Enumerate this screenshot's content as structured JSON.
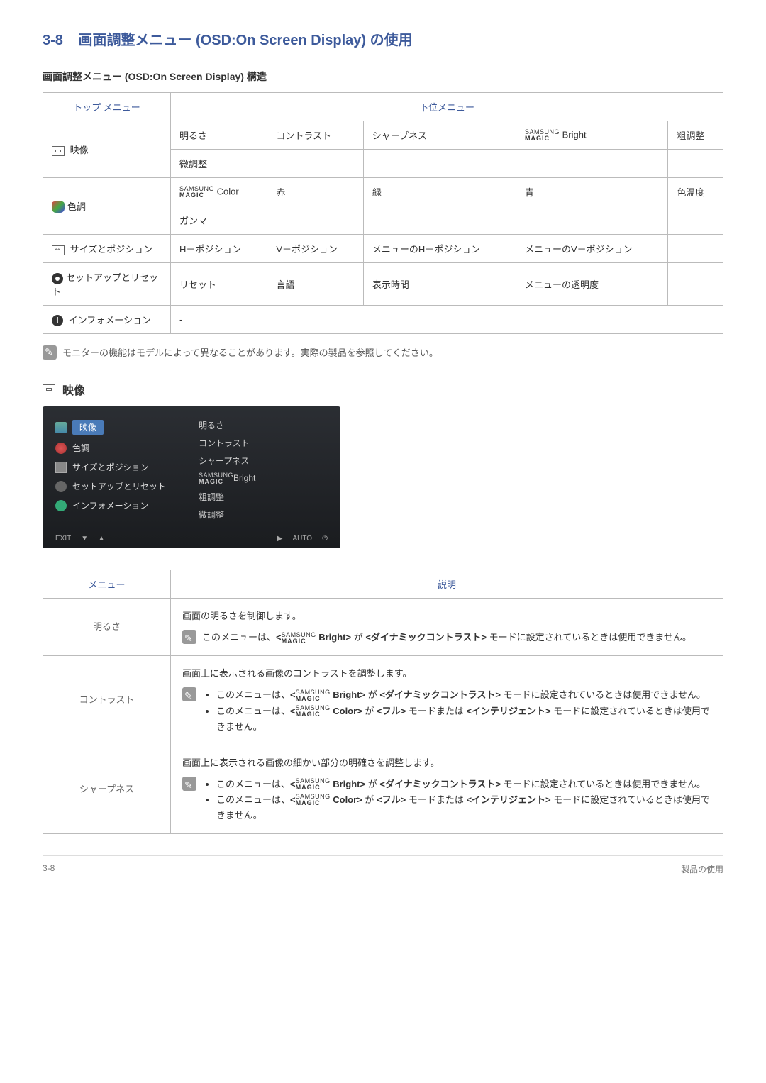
{
  "header": {
    "section_number": "3-8",
    "title": "画面調整メニュー (OSD:On Screen Display) の使用"
  },
  "structure_title": "画面調整メニュー (OSD:On Screen Display) 構造",
  "table1": {
    "head": {
      "top": "トップ メニュー",
      "sub": "下位メニュー"
    },
    "rows": {
      "picture": {
        "label": "映像",
        "c1": "明るさ",
        "c2": "コントラスト",
        "c3": "シャープネス",
        "c4_suffix": " Bright",
        "c5": "粗調整",
        "r2c1": "微調整"
      },
      "color": {
        "label": "色調",
        "c1_suffix": " Color",
        "c2": "赤",
        "c3": "緑",
        "c4": "青",
        "c5": "色温度",
        "r2c1": "ガンマ"
      },
      "size": {
        "label": "サイズとポジション",
        "c1": "H－ポジション",
        "c2": "V－ポジション",
        "c3": "メニューのH－ポジション",
        "c4": "メニューのV－ポジション",
        "c5": ""
      },
      "setup": {
        "label": "セットアップとリセット",
        "c1": "リセット",
        "c2": "言語",
        "c3": "表示時間",
        "c4": "メニューの透明度",
        "c5": ""
      },
      "info": {
        "label": "インフォメーション",
        "c1": "-"
      }
    }
  },
  "magic": {
    "top": "SAMSUNG",
    "bottom": "MAGIC"
  },
  "note1": "モニターの機能はモデルによって異なることがあります。実際の製品を参照してください。",
  "picture_section": "映像",
  "screenshot": {
    "left": {
      "i1": "映像",
      "i2": "色調",
      "i3": "サイズとポジション",
      "i4": "セットアップとリセット",
      "i5": "インフォメーション"
    },
    "right": {
      "r1": "明るさ",
      "r2": "コントラスト",
      "r3": "シャープネス",
      "r4": "Bright",
      "r5": "粗調整",
      "r6": "微調整"
    },
    "footer": {
      "exit": "EXIT",
      "auto": "AUTO"
    }
  },
  "table2": {
    "head": {
      "menu": "メニュー",
      "desc": "説明"
    },
    "brightness": {
      "label": "明るさ",
      "line1": "画面の明るさを制御します。",
      "note": "このメニューは、< Bright> が <ダイナミックコントラスト> モードに設定されているときは使用できません。"
    },
    "contrast": {
      "label": "コントラスト",
      "line1": "画面上に表示される画像のコントラストを調整します。",
      "b1": "このメニューは、< Bright> が <ダイナミックコントラスト> モードに設定されているときは使用できません。",
      "b2": "このメニューは、< Color> が <フル> モードまたは <インテリジェント> モードに設定されているときは使用できません。"
    },
    "sharpness": {
      "label": "シャープネス",
      "line1": "画面上に表示される画像の細かい部分の明確さを調整します。",
      "b1": "このメニューは、< Bright> が <ダイナミックコントラスト> モードに設定されているときは使用できません。",
      "b2": "このメニューは、< Color> が <フル> モードまたは <インテリジェント> モードに設定されているときは使用できません。"
    }
  },
  "footer": {
    "left": "3-8",
    "right": "製品の使用"
  }
}
